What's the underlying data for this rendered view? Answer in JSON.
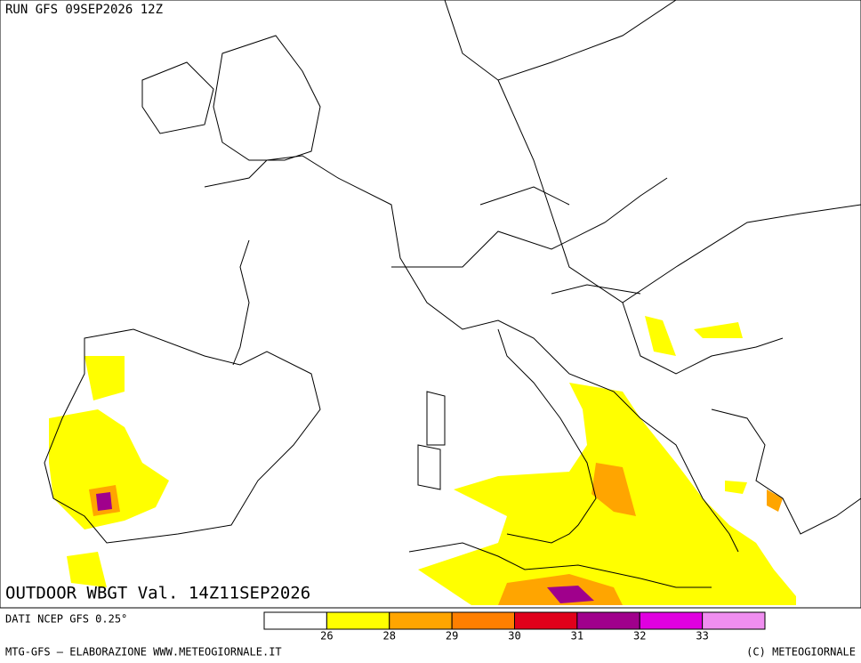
{
  "header": {
    "run": "RUN GFS 09SEP2026 12Z"
  },
  "map": {
    "title": "OUTDOOR WBGT Val. 14Z11SEP2026"
  },
  "legend": {
    "source": "DATI NCEP GFS 0.25°",
    "colors": [
      "#ffffff",
      "#ffff00",
      "#ffa500",
      "#ff7f00",
      "#e0001a",
      "#a0008c",
      "#e000e0",
      "#f08ef0"
    ],
    "ticks": [
      26,
      28,
      29,
      30,
      31,
      32,
      33
    ]
  },
  "footer": {
    "left": "MTG-GFS — ELABORAZIONE WWW.METEOGIORNALE.IT",
    "right": "(C) METEOGIORNALE"
  }
}
